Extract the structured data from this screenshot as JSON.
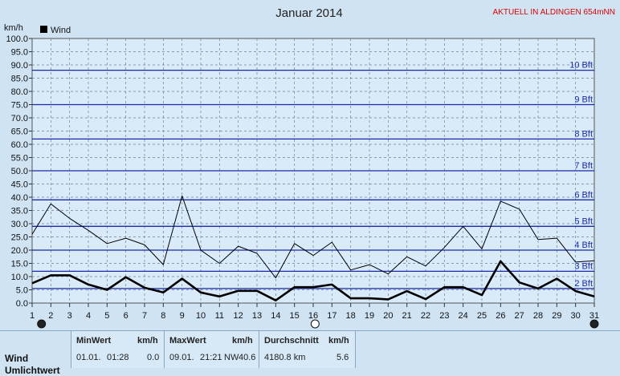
{
  "header": {
    "title": "Januar 2014",
    "station": "AKTUELL IN ALDINGEN 654mNN",
    "unit": "km/h",
    "legend_label": "Wind"
  },
  "colors": {
    "background": "#cfe3f3",
    "plot": "#d9ebf8",
    "beaufort_line": "#1a2aa8",
    "beaufort_text": "#1a2aa8",
    "station_text": "#e00000",
    "grid": "#6f7f8f",
    "series": "#000000"
  },
  "chart_data": {
    "type": "line",
    "title": "Januar 2014",
    "ylabel": "km/h",
    "ylim": [
      0,
      100
    ],
    "xlim": [
      1,
      31
    ],
    "y_ticks": [
      "0.0",
      "5.0",
      "10.0",
      "15.0",
      "20.0",
      "25.0",
      "30.0",
      "35.0",
      "40.0",
      "45.0",
      "50.0",
      "55.0",
      "60.0",
      "65.0",
      "70.0",
      "75.0",
      "80.0",
      "85.0",
      "90.0",
      "95.0",
      "100.0"
    ],
    "x_ticks": [
      "1",
      "2",
      "3",
      "4",
      "5",
      "6",
      "7",
      "8",
      "9",
      "10",
      "11",
      "12",
      "13",
      "14",
      "15",
      "16",
      "17",
      "18",
      "19",
      "20",
      "21",
      "22",
      "23",
      "24",
      "25",
      "26",
      "27",
      "28",
      "29",
      "30",
      "31"
    ],
    "grid": true,
    "legend": "top-left",
    "beaufort": [
      {
        "label": "2 Bft",
        "value": 5.5
      },
      {
        "label": "3 Bft",
        "value": 12
      },
      {
        "label": "4 Bft",
        "value": 20
      },
      {
        "label": "5 Bft",
        "value": 29
      },
      {
        "label": "6 Bft",
        "value": 39
      },
      {
        "label": "7 Bft",
        "value": 50
      },
      {
        "label": "8 Bft",
        "value": 62
      },
      {
        "label": "9 Bft",
        "value": 75
      },
      {
        "label": "10 Bft",
        "value": 88
      }
    ],
    "series": [
      {
        "name": "Wind",
        "style": "thick",
        "x": [
          1,
          2,
          3,
          4,
          5,
          6,
          7,
          8,
          9,
          10,
          11,
          12,
          13,
          14,
          15,
          16,
          17,
          18,
          19,
          20,
          21,
          22,
          23,
          24,
          25,
          26,
          27,
          28,
          29,
          30,
          31
        ],
        "values": [
          7.5,
          10.5,
          10.5,
          7.0,
          5.0,
          9.8,
          5.8,
          4.0,
          9.2,
          4.0,
          2.5,
          4.6,
          4.6,
          1.0,
          6.0,
          6.0,
          7.0,
          1.8,
          1.8,
          1.4,
          4.5,
          1.5,
          6.0,
          6.0,
          3.0,
          15.8,
          7.8,
          5.5,
          9.2,
          4.5,
          2.5
        ]
      },
      {
        "style": "thin",
        "x": [
          1,
          2,
          3,
          4,
          5,
          6,
          7,
          8,
          9,
          10,
          11,
          12,
          13,
          14,
          15,
          16,
          17,
          18,
          19,
          20,
          21,
          22,
          23,
          24,
          25,
          26,
          27,
          28,
          29,
          30,
          31
        ],
        "values": [
          26.0,
          37.5,
          32.0,
          27.5,
          22.5,
          24.5,
          22.0,
          14.5,
          40.5,
          20.0,
          15.0,
          21.5,
          18.8,
          9.5,
          22.5,
          18.0,
          23.0,
          12.5,
          14.5,
          11.0,
          17.5,
          14.0,
          21.0,
          29.0,
          20.5,
          38.5,
          35.5,
          24.0,
          24.5,
          15.5,
          16.0
        ]
      }
    ],
    "markers": [
      {
        "x": 1.5,
        "symbol": "new-moon"
      },
      {
        "x": 16.1,
        "symbol": "full-moon"
      },
      {
        "x": 31,
        "symbol": "new-moon"
      }
    ]
  },
  "footer": {
    "row1_label": "Wind",
    "row2_label": "Umlichtwert",
    "min": {
      "header": "MinWert",
      "unit": "km/h",
      "date": "01.01.",
      "time": "01:28",
      "value": "0.0"
    },
    "max": {
      "header": "MaxWert",
      "unit": "km/h",
      "date": "09.01.",
      "time": "21:21",
      "dir": "NW",
      "value": "40.6"
    },
    "avg": {
      "header": "Durchschnitt",
      "unit": "km/h",
      "distance": "4180.8 km",
      "value": "5.6"
    }
  }
}
